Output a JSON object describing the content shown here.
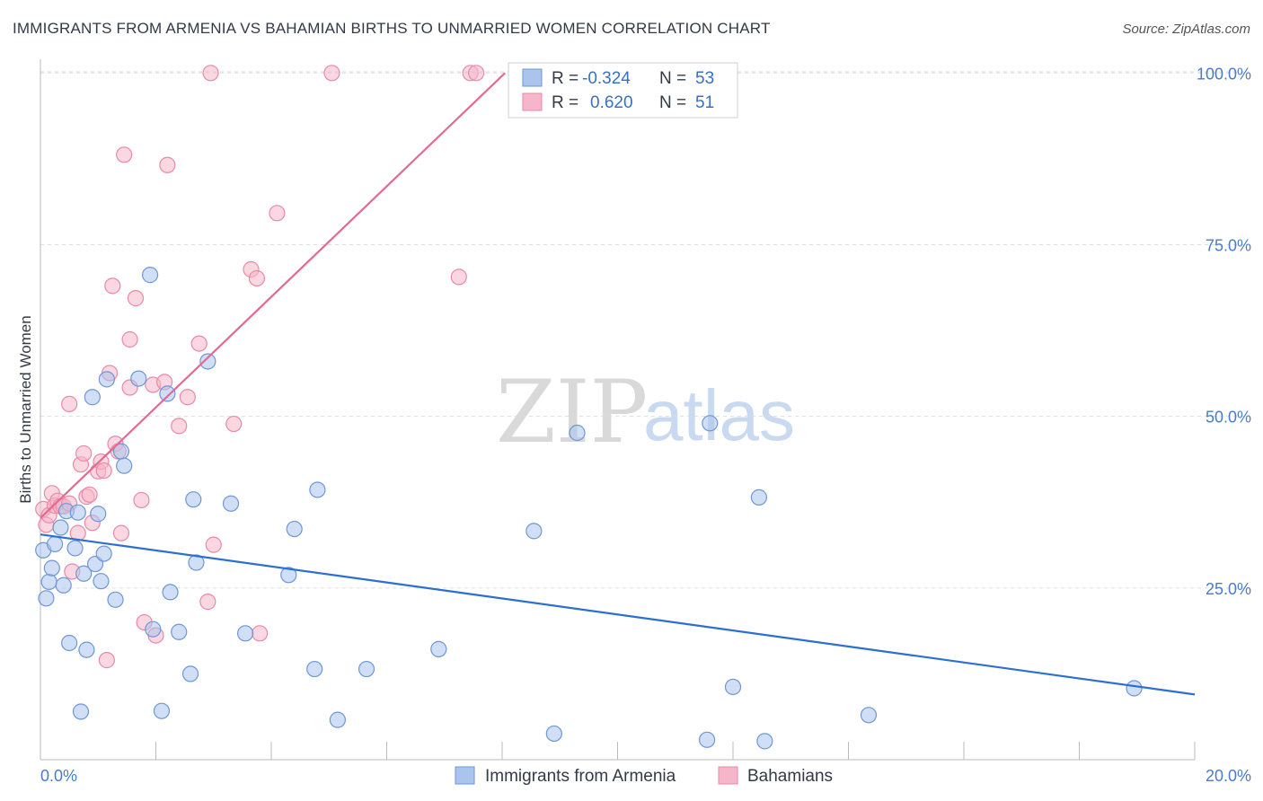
{
  "title": "IMMIGRANTS FROM ARMENIA VS BAHAMIAN BIRTHS TO UNMARRIED WOMEN CORRELATION CHART",
  "source": "Source: ZipAtlas.com",
  "watermark": {
    "zip": "ZIP",
    "atlas": "atlas"
  },
  "colors": {
    "blue_fill": "#aac4ec",
    "blue_stroke": "#6e97d6",
    "blue_line": "#2c6fd1",
    "pink_fill": "#f5b6c9",
    "pink_stroke": "#e88aa8",
    "pink_line": "#e26a93",
    "grid": "#dddddd",
    "tick_text": "#4a7cc9"
  },
  "legend": {
    "rows": [
      {
        "r_label": "R =",
        "r_value": "-0.324",
        "n_label": "N =",
        "n_value": "53"
      },
      {
        "r_label": "R =",
        "r_value": "0.620",
        "n_label": "N =",
        "n_value": "51"
      }
    ]
  },
  "chart_data": {
    "type": "scatter",
    "title": "IMMIGRANTS FROM ARMENIA VS BAHAMIAN BIRTHS TO UNMARRIED WOMEN CORRELATION CHART",
    "xlabel": "",
    "ylabel": "Births to Unmarried Women",
    "xlim": [
      0,
      20
    ],
    "ylim": [
      0,
      102
    ],
    "x_tick_labels": [
      "0.0%",
      "20.0%"
    ],
    "y_ticks": [
      25,
      50,
      75,
      100
    ],
    "y_tick_labels": [
      "25.0%",
      "50.0%",
      "75.0%",
      "100.0%"
    ],
    "grid": true,
    "series": [
      {
        "name": "Immigrants from Armenia",
        "color": "blue",
        "R": -0.324,
        "N": 53,
        "trend": {
          "x0": 0,
          "y0": 32.8,
          "x1": 20,
          "y1": 9.5
        },
        "points": [
          [
            0.05,
            30.5
          ],
          [
            0.1,
            23.5
          ],
          [
            0.15,
            25.9
          ],
          [
            0.2,
            27.9
          ],
          [
            0.25,
            31.4
          ],
          [
            0.35,
            33.8
          ],
          [
            0.4,
            25.4
          ],
          [
            0.45,
            36.2
          ],
          [
            0.5,
            17.0
          ],
          [
            0.6,
            30.8
          ],
          [
            0.65,
            36.0
          ],
          [
            0.7,
            7.0
          ],
          [
            0.75,
            27.1
          ],
          [
            0.8,
            16.0
          ],
          [
            0.9,
            52.8
          ],
          [
            0.95,
            28.5
          ],
          [
            1.0,
            35.8
          ],
          [
            1.05,
            26.0
          ],
          [
            1.1,
            30.0
          ],
          [
            1.15,
            55.4
          ],
          [
            1.3,
            23.3
          ],
          [
            1.4,
            44.9
          ],
          [
            1.45,
            42.8
          ],
          [
            1.7,
            55.5
          ],
          [
            1.9,
            70.6
          ],
          [
            1.95,
            19.0
          ],
          [
            2.1,
            7.1
          ],
          [
            2.2,
            53.3
          ],
          [
            2.25,
            24.4
          ],
          [
            2.4,
            18.6
          ],
          [
            2.6,
            12.5
          ],
          [
            2.65,
            37.9
          ],
          [
            2.7,
            28.7
          ],
          [
            2.9,
            58.0
          ],
          [
            3.3,
            37.3
          ],
          [
            3.55,
            18.4
          ],
          [
            4.3,
            26.9
          ],
          [
            4.4,
            33.6
          ],
          [
            4.75,
            13.2
          ],
          [
            4.8,
            39.3
          ],
          [
            5.15,
            5.8
          ],
          [
            5.65,
            13.2
          ],
          [
            6.9,
            16.1
          ],
          [
            8.55,
            33.3
          ],
          [
            8.9,
            3.8
          ],
          [
            9.3,
            47.6
          ],
          [
            11.55,
            2.9
          ],
          [
            11.6,
            49.0
          ],
          [
            12.0,
            10.6
          ],
          [
            12.45,
            38.2
          ],
          [
            12.55,
            2.7
          ],
          [
            14.35,
            6.5
          ],
          [
            18.95,
            10.4
          ]
        ]
      },
      {
        "name": "Bahamians",
        "color": "pink",
        "R": 0.62,
        "N": 51,
        "trend": {
          "x0": 0,
          "y0": 35.2,
          "x1": 8.05,
          "y1": 100.0
        },
        "points": [
          [
            0.05,
            36.5
          ],
          [
            0.1,
            34.2
          ],
          [
            0.15,
            35.6
          ],
          [
            0.2,
            38.8
          ],
          [
            0.25,
            37.0
          ],
          [
            0.3,
            37.7
          ],
          [
            0.35,
            36.9
          ],
          [
            0.4,
            36.9
          ],
          [
            0.5,
            37.3
          ],
          [
            0.5,
            51.8
          ],
          [
            0.55,
            27.4
          ],
          [
            0.65,
            33.0
          ],
          [
            0.7,
            43.0
          ],
          [
            0.75,
            44.6
          ],
          [
            0.8,
            38.3
          ],
          [
            0.85,
            38.6
          ],
          [
            0.9,
            34.5
          ],
          [
            1.0,
            42.0
          ],
          [
            1.05,
            43.4
          ],
          [
            1.1,
            42.1
          ],
          [
            1.15,
            14.5
          ],
          [
            1.2,
            56.3
          ],
          [
            1.25,
            69.0
          ],
          [
            1.3,
            46.0
          ],
          [
            1.35,
            44.9
          ],
          [
            1.4,
            33.0
          ],
          [
            1.45,
            88.1
          ],
          [
            1.55,
            54.2
          ],
          [
            1.55,
            61.2
          ],
          [
            1.65,
            67.2
          ],
          [
            1.75,
            37.8
          ],
          [
            1.8,
            20.0
          ],
          [
            1.95,
            54.6
          ],
          [
            2.0,
            18.1
          ],
          [
            2.15,
            55.0
          ],
          [
            2.2,
            86.6
          ],
          [
            2.4,
            48.6
          ],
          [
            2.55,
            52.8
          ],
          [
            2.75,
            60.6
          ],
          [
            2.9,
            23.0
          ],
          [
            2.95,
            100.0
          ],
          [
            3.0,
            31.3
          ],
          [
            3.35,
            48.9
          ],
          [
            3.65,
            71.4
          ],
          [
            3.75,
            70.1
          ],
          [
            3.8,
            18.4
          ],
          [
            4.1,
            79.6
          ],
          [
            5.05,
            100.0
          ],
          [
            7.25,
            70.3
          ],
          [
            7.45,
            100.0
          ],
          [
            7.55,
            100.0
          ]
        ]
      }
    ]
  }
}
